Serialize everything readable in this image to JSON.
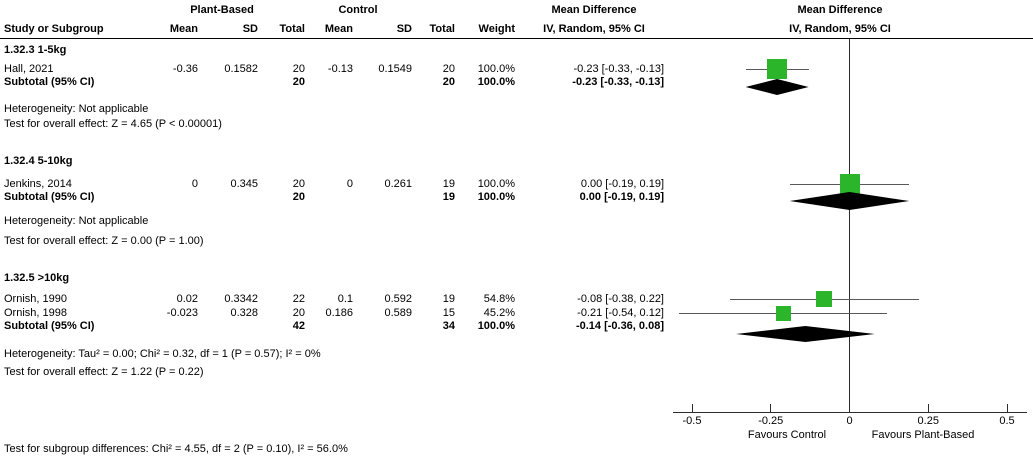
{
  "header": {
    "group_plant": "Plant-Based",
    "group_control": "Control",
    "md_title_left": "Mean Difference",
    "md_sub_left": "IV, Random, 95% CI",
    "md_title_right": "Mean Difference",
    "md_sub_right": "IV, Random, 95% CI",
    "study": "Study or Subgroup",
    "mean1": "Mean",
    "sd1": "SD",
    "total1": "Total",
    "mean2": "Mean",
    "sd2": "SD",
    "total2": "Total",
    "weight": "Weight"
  },
  "groups": [
    {
      "heading": "1.32.3 1-5kg",
      "studies": [
        {
          "label": "Hall, 2021",
          "mean1": "-0.36",
          "sd1": "0.1582",
          "n1": "20",
          "mean2": "-0.13",
          "sd2": "0.1549",
          "n2": "20",
          "weight": "100.0%",
          "ci_text": "-0.23 [-0.33, -0.13]"
        }
      ],
      "subtotal": {
        "label": "Subtotal (95% CI)",
        "n1": "20",
        "n2": "20",
        "weight": "100.0%",
        "ci_text": "-0.23 [-0.33, -0.13]"
      },
      "heterogeneity": "Heterogeneity: Not applicable",
      "overall": "Test for overall effect: Z = 4.65 (P < 0.00001)"
    },
    {
      "heading": "1.32.4 5-10kg",
      "studies": [
        {
          "label": "Jenkins, 2014",
          "mean1": "0",
          "sd1": "0.345",
          "n1": "20",
          "mean2": "0",
          "sd2": "0.261",
          "n2": "19",
          "weight": "100.0%",
          "ci_text": "0.00 [-0.19, 0.19]"
        }
      ],
      "subtotal": {
        "label": "Subtotal (95% CI)",
        "n1": "20",
        "n2": "19",
        "weight": "100.0%",
        "ci_text": "0.00 [-0.19, 0.19]"
      },
      "heterogeneity": "Heterogeneity: Not applicable",
      "overall": "Test for overall effect: Z = 0.00 (P = 1.00)"
    },
    {
      "heading": "1.32.5 >10kg",
      "studies": [
        {
          "label": "Ornish, 1990",
          "mean1": "0.02",
          "sd1": "0.3342",
          "n1": "22",
          "mean2": "0.1",
          "sd2": "0.592",
          "n2": "19",
          "weight": "54.8%",
          "ci_text": "-0.08 [-0.38, 0.22]"
        },
        {
          "label": "Ornish, 1998",
          "mean1": "-0.023",
          "sd1": "0.328",
          "n1": "20",
          "mean2": "0.186",
          "sd2": "0.589",
          "n2": "15",
          "weight": "45.2%",
          "ci_text": "-0.21 [-0.54, 0.12]"
        }
      ],
      "subtotal": {
        "label": "Subtotal (95% CI)",
        "n1": "42",
        "n2": "34",
        "weight": "100.0%",
        "ci_text": "-0.14 [-0.36, 0.08]"
      },
      "heterogeneity": "Heterogeneity: Tau² = 0.00; Chi² = 0.32, df = 1 (P = 0.57); I² = 0%",
      "overall": "Test for overall effect: Z = 1.22 (P = 0.22)"
    }
  ],
  "axis": {
    "tick_labels": [
      "-0.5",
      "-0.25",
      "0",
      "0.25",
      "0.5"
    ],
    "favours_left": "Favours Control",
    "favours_right": "Favours Plant-Based"
  },
  "footer": "Test for subgroup differences: Chi² = 4.55, df = 2 (P = 0.10), I² = 56.0%",
  "colors": {
    "square": "#2bb52b",
    "diamond": "#000000",
    "ci_line": "#595959"
  },
  "chart_data": {
    "type": "scatter",
    "variant": "forest_plot",
    "effect_measure": "Mean Difference, IV, Random, 95% CI",
    "xlim": [
      -0.5,
      0.5
    ],
    "x_ticks": [
      -0.5,
      -0.25,
      0,
      0.25,
      0.5
    ],
    "axis_label_left": "Favours Control",
    "axis_label_right": "Favours Plant-Based",
    "subgroups": [
      {
        "name": "1.32.3 1-5kg",
        "studies": [
          {
            "label": "Hall, 2021",
            "md": -0.23,
            "ci": [
              -0.33,
              -0.13
            ],
            "weight_pct": 100.0
          }
        ],
        "subtotal": {
          "md": -0.23,
          "ci": [
            -0.33,
            -0.13
          ]
        }
      },
      {
        "name": "1.32.4 5-10kg",
        "studies": [
          {
            "label": "Jenkins, 2014",
            "md": 0.0,
            "ci": [
              -0.19,
              0.19
            ],
            "weight_pct": 100.0
          }
        ],
        "subtotal": {
          "md": 0.0,
          "ci": [
            -0.19,
            0.19
          ]
        }
      },
      {
        "name": "1.32.5 >10kg",
        "studies": [
          {
            "label": "Ornish, 1990",
            "md": -0.08,
            "ci": [
              -0.38,
              0.22
            ],
            "weight_pct": 54.8
          },
          {
            "label": "Ornish, 1998",
            "md": -0.21,
            "ci": [
              -0.54,
              0.12
            ],
            "weight_pct": 45.2
          }
        ],
        "subtotal": {
          "md": -0.14,
          "ci": [
            -0.36,
            0.08
          ]
        }
      }
    ]
  }
}
